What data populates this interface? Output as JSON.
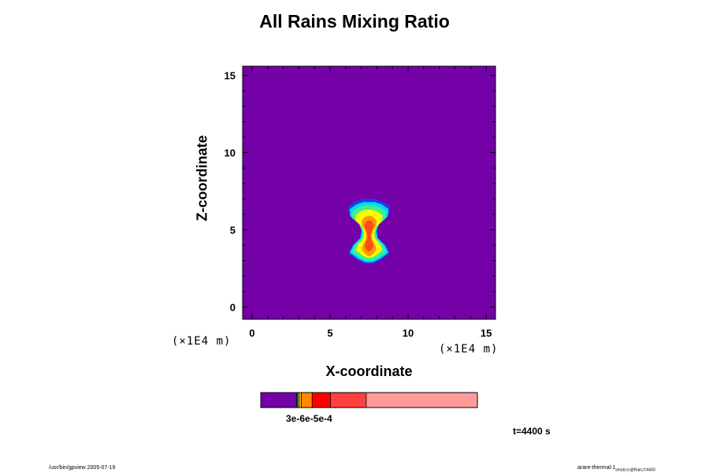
{
  "chart_data": {
    "type": "heatmap",
    "title": "All Rains Mixing Ratio",
    "xlabel": "X-coordinate",
    "ylabel": "Z-coordinate",
    "x_unit": "(×1E4 m)",
    "y_unit": "(×1E4 m)",
    "xlim": [
      -0.6,
      15.6
    ],
    "ylim": [
      -0.8,
      15.6
    ],
    "x_ticks": [
      "0",
      "5",
      "10",
      "15"
    ],
    "y_ticks": [
      "0",
      "5",
      "10",
      "15"
    ],
    "background_color": "#7400a8",
    "contour_levels": [
      {
        "x_range": [
          6.1,
          8.9
        ],
        "z_range": [
          2.8,
          7.0
        ],
        "color": "#1f3fe0"
      },
      {
        "x_range": [
          6.2,
          8.8
        ],
        "z_range": [
          2.9,
          6.8
        ],
        "color": "#00d8ff"
      },
      {
        "x_range": [
          6.35,
          8.65
        ],
        "z_range": [
          3.0,
          6.6
        ],
        "color": "#3cf08c"
      },
      {
        "x_range": [
          6.6,
          8.4
        ],
        "z_range": [
          3.2,
          6.3
        ],
        "color": "#f7ff00"
      },
      {
        "x_range": [
          7.0,
          8.0
        ],
        "z_range": [
          3.3,
          5.9
        ],
        "color": "#ff9a00"
      },
      {
        "x_range": [
          7.2,
          7.8
        ],
        "z_range": [
          3.6,
          5.6
        ],
        "color": "#ff4a1a"
      }
    ],
    "colorbar": {
      "segments": [
        {
          "fraction": 0.165,
          "color": "#7400a8"
        },
        {
          "fraction": 0.006,
          "color": "#1f3fe0"
        },
        {
          "fraction": 0.006,
          "color": "#f7ff00"
        },
        {
          "fraction": 0.01,
          "color": "#ffb000"
        },
        {
          "fraction": 0.05,
          "color": "#ff8a00"
        },
        {
          "fraction": 0.085,
          "color": "#ff0000"
        },
        {
          "fraction": 0.165,
          "color": "#ff4040"
        },
        {
          "fraction": 0.513,
          "color": "#ff9a9a"
        }
      ],
      "label": "3e-6e-5e-4"
    },
    "time_label": "t=4400 s"
  },
  "footer": {
    "left": "/usr/bin/gpview 2005-07-19",
    "right_main": "arare-thermal-1",
    "right_sub": "small.nc@Rain,t=4400"
  }
}
